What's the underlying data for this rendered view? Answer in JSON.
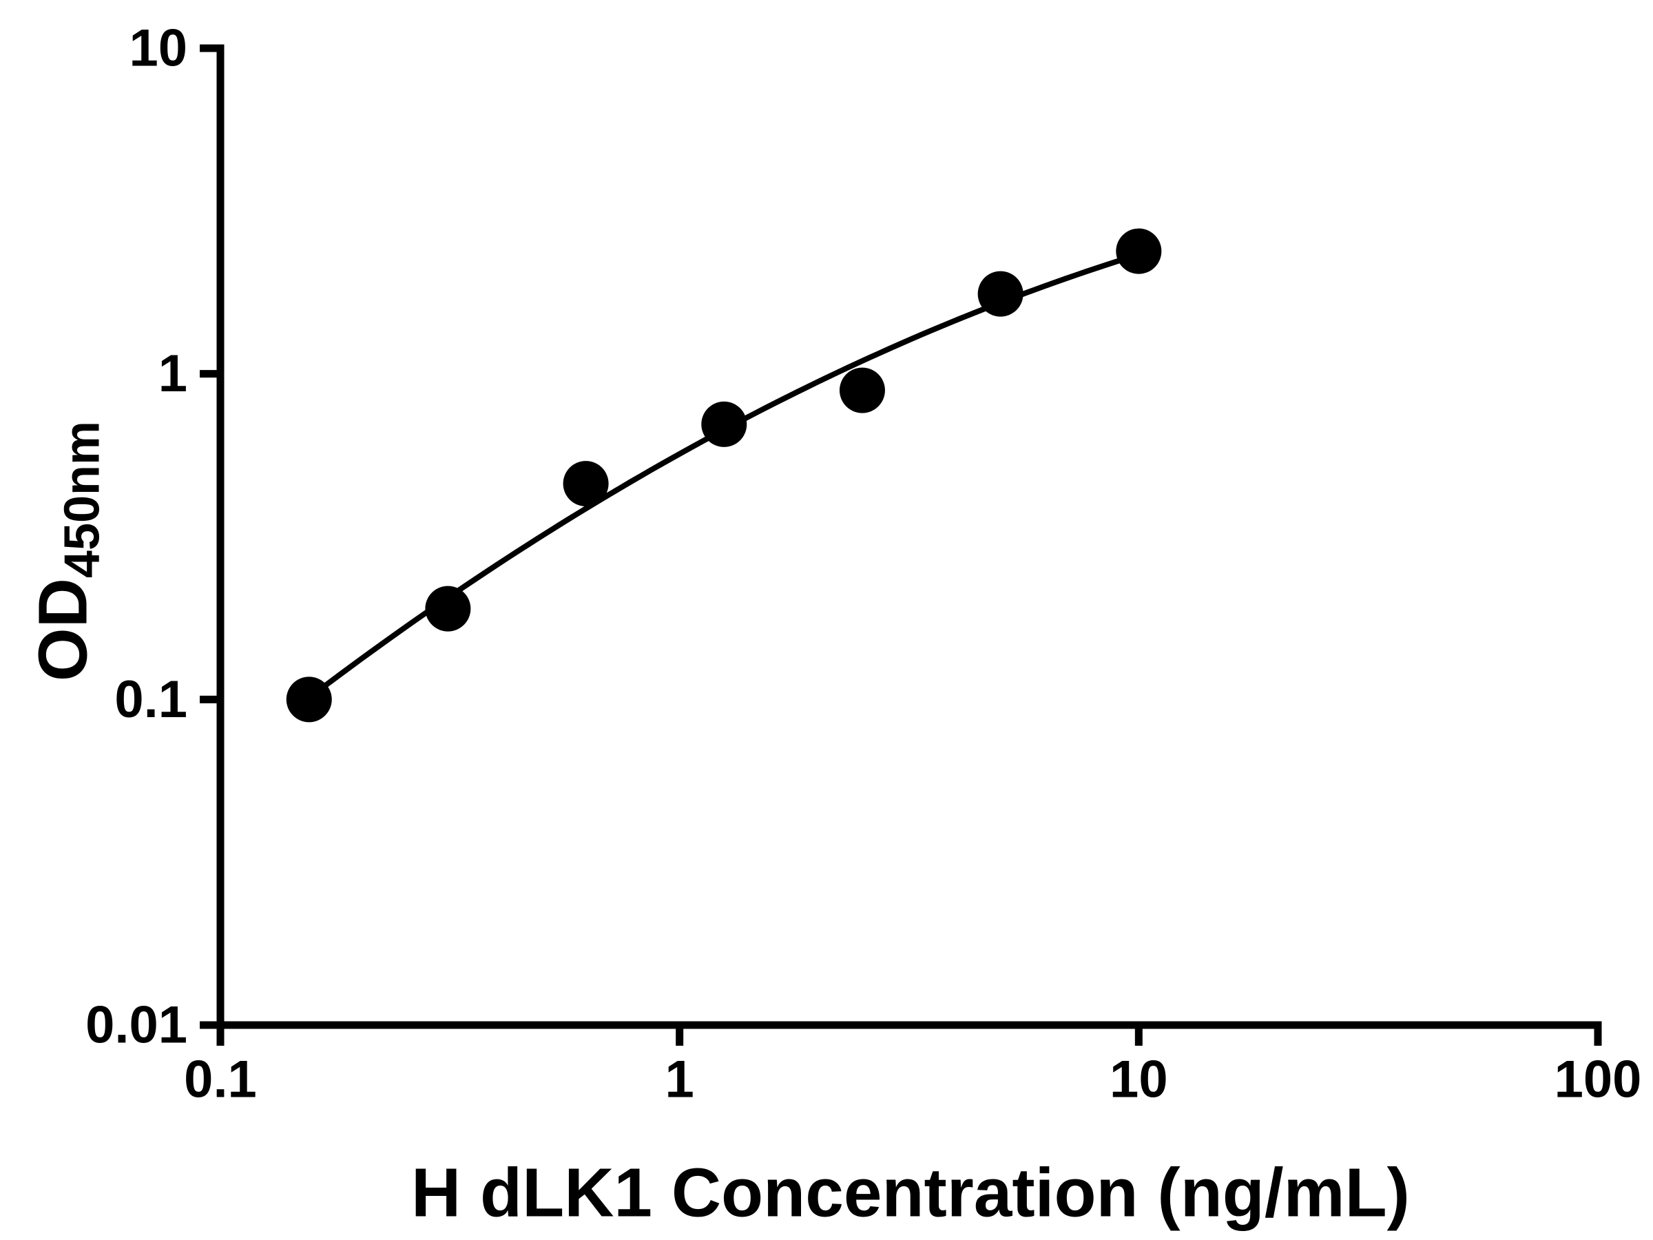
{
  "chart_data": {
    "type": "scatter",
    "title": "",
    "xlabel": "H dLK1 Concentration (ng/mL)",
    "ylabel_main": "OD",
    "ylabel_sub": "450nm",
    "x_scale": "log",
    "y_scale": "log",
    "xlim": [
      0.1,
      100
    ],
    "ylim": [
      0.01,
      10
    ],
    "x_ticks": [
      "0.1",
      "1",
      "10",
      "100"
    ],
    "y_ticks": [
      "0.01",
      "0.1",
      "1",
      "10"
    ],
    "points": [
      {
        "x": 0.156,
        "y": 0.1
      },
      {
        "x": 0.313,
        "y": 0.19
      },
      {
        "x": 0.625,
        "y": 0.46
      },
      {
        "x": 1.25,
        "y": 0.7
      },
      {
        "x": 2.5,
        "y": 0.89
      },
      {
        "x": 5,
        "y": 1.76
      },
      {
        "x": 10,
        "y": 2.38
      }
    ],
    "curve_fit": "quadratic_loglog",
    "marker_color": "#000000",
    "line_color": "#000000",
    "axis_color": "#000000",
    "background_color": "#ffffff",
    "grid": false,
    "legend": false
  }
}
